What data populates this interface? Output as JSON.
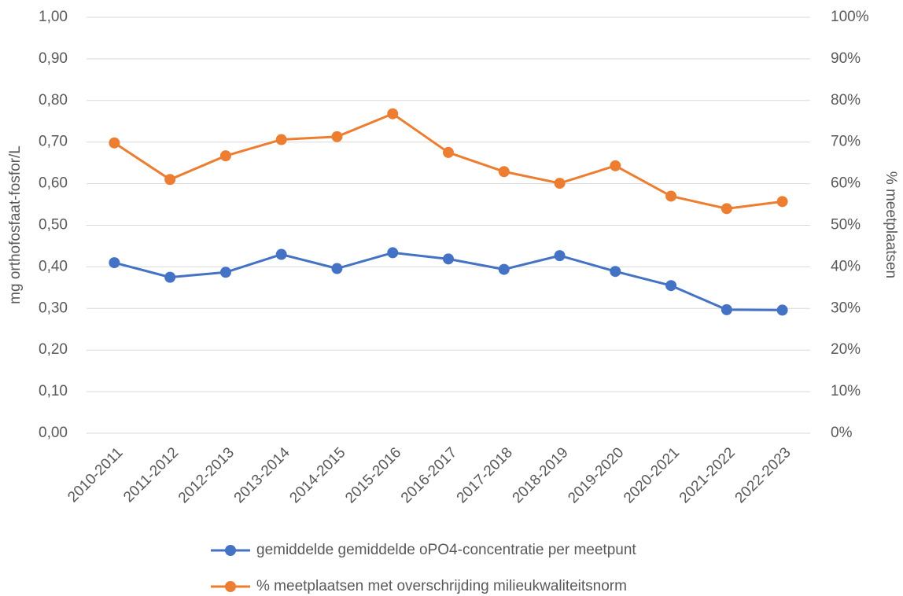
{
  "chart_data": {
    "type": "line",
    "ylabel": "mg orthofosfaat-fosfor/L",
    "y2label": "% meetplaatsen",
    "categories": [
      "2010-2011",
      "2011-2012",
      "2012-2013",
      "2013-2014",
      "2014-2015",
      "2015-2016",
      "2016-2017",
      "2017-2018",
      "2018-2019",
      "2019-2020",
      "2020-2021",
      "2021-2022",
      "2022-2023"
    ],
    "series": [
      {
        "name": "gemiddelde gemiddelde oPO4-concentratie per meetpunt",
        "color": "#4472c4",
        "values": [
          0.41,
          0.375,
          0.387,
          0.43,
          0.396,
          0.434,
          0.419,
          0.394,
          0.427,
          0.389,
          0.355,
          0.297,
          0.296
        ]
      },
      {
        "name": "% meetplaatsen met overschrijding milieukwaliteitsnorm",
        "color": "#ed7d31",
        "axis": "y2",
        "values": [
          69.8,
          61,
          66.7,
          70.6,
          71.3,
          76.8,
          67.5,
          62.9,
          60.1,
          64.3,
          57,
          54,
          55.7
        ]
      }
    ],
    "ylim": [
      0,
      1
    ],
    "yticks": [
      {
        "value": 0,
        "label": "0,00"
      },
      {
        "value": 0.1,
        "label": "0,10"
      },
      {
        "value": 0.2,
        "label": "0,20"
      },
      {
        "value": 0.3,
        "label": "0,30"
      },
      {
        "value": 0.4,
        "label": "0,40"
      },
      {
        "value": 0.5,
        "label": "0,50"
      },
      {
        "value": 0.6,
        "label": "0,60"
      },
      {
        "value": 0.7,
        "label": "0,70"
      },
      {
        "value": 0.8,
        "label": "0,80"
      },
      {
        "value": 0.9,
        "label": "0,90"
      },
      {
        "value": 1,
        "label": "1,00"
      }
    ],
    "y2lim": [
      0,
      100
    ],
    "y2ticks": [
      {
        "value": 0,
        "label": "0%"
      },
      {
        "value": 10,
        "label": "10%"
      },
      {
        "value": 20,
        "label": "20%"
      },
      {
        "value": 30,
        "label": "30%"
      },
      {
        "value": 40,
        "label": "40%"
      },
      {
        "value": 50,
        "label": "50%"
      },
      {
        "value": 60,
        "label": "60%"
      },
      {
        "value": 70,
        "label": "70%"
      },
      {
        "value": 80,
        "label": "80%"
      },
      {
        "value": 90,
        "label": "90%"
      },
      {
        "value": 100,
        "label": "100%"
      }
    ],
    "grid": true
  }
}
